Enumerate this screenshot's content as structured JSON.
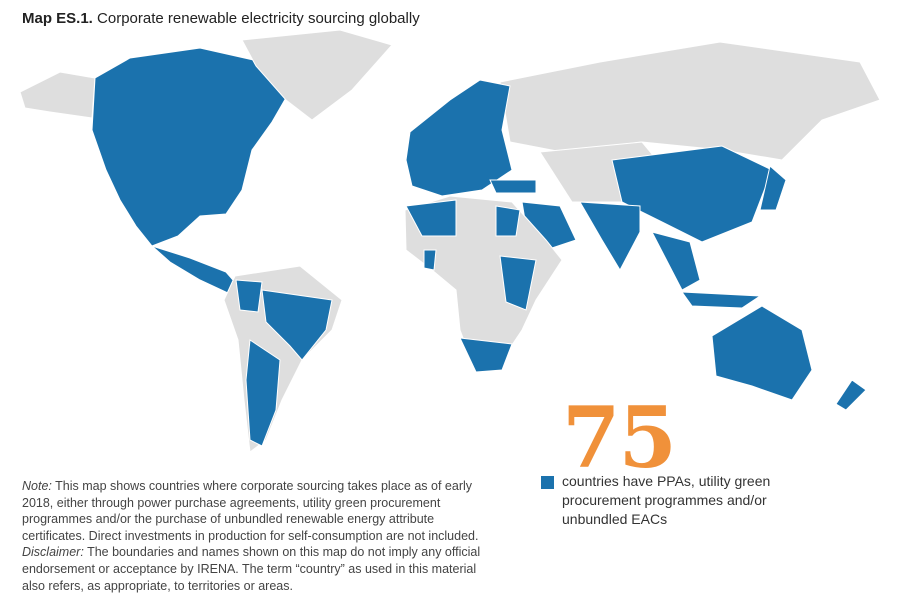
{
  "header": {
    "label": "Map ES.1.",
    "title": "Corporate renewable electricity sourcing globally"
  },
  "highlight": {
    "number": 75,
    "text": "countries have PPAs, utility green procurement programmes and/or unbundled EACs"
  },
  "note": {
    "label": "Note:",
    "text": "This map shows countries where corporate sourcing takes place as of early 2018, either through power purchase agreements, utility green procurement programmes and/or the purchase of unbundled renewable energy attribute certificates. Direct investments in production for self-consumption are not included."
  },
  "disclaimer": {
    "label": "Disclaimer:",
    "text": "The boundaries and names shown on this map do not imply any official endorsement or acceptance by IRENA. The term “country” as used in this material also refers, as appropriate, to territories or areas."
  }
}
